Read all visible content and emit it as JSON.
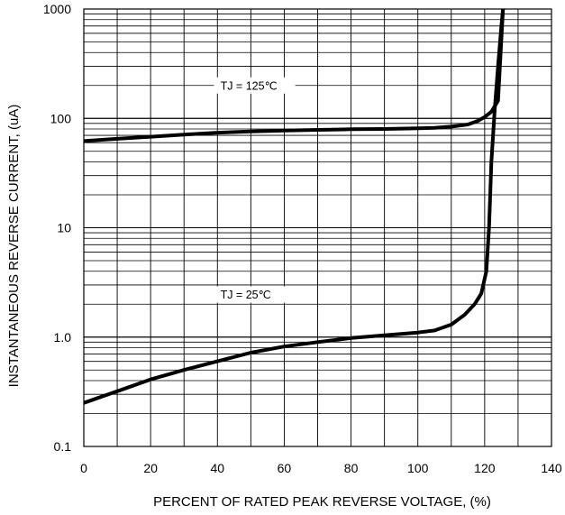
{
  "chart_data": {
    "type": "line",
    "title": "",
    "xlabel": "PERCENT OF RATED PEAK REVERSE VOLTAGE, (%)",
    "ylabel": "INSTANTANEOUS REVERSE CURRENT, (uA)",
    "xlim": [
      0,
      140
    ],
    "ylim": [
      0.1,
      1000
    ],
    "y_scale": "log",
    "grid": true,
    "x_ticks": [
      0,
      20,
      40,
      60,
      80,
      100,
      120,
      140
    ],
    "x_tick_labels": [
      "0",
      "20",
      "40",
      "60",
      "80",
      "100",
      "120",
      "140"
    ],
    "y_ticks": [
      0.1,
      1,
      10,
      100,
      1000
    ],
    "y_tick_labels": [
      "0.1",
      "1.0",
      "10",
      "100",
      "1000"
    ],
    "series": [
      {
        "label": "TJ = 125℃",
        "color": "#000000",
        "x": [
          0,
          10,
          20,
          30,
          40,
          50,
          60,
          70,
          80,
          90,
          100,
          105,
          110,
          115,
          118,
          120,
          122,
          124,
          125.5
        ],
        "y": [
          62,
          65,
          68,
          71,
          74,
          76,
          77.5,
          78.5,
          79.5,
          80,
          81,
          82,
          84,
          88,
          95,
          103,
          115,
          145,
          1000
        ]
      },
      {
        "label": "TJ = 25℃",
        "color": "#000000",
        "x": [
          0,
          10,
          20,
          30,
          40,
          50,
          60,
          70,
          80,
          90,
          100,
          105,
          110,
          114,
          117,
          119,
          120.5,
          121.3,
          122,
          123,
          124,
          125,
          125.5
        ],
        "y": [
          0.25,
          0.32,
          0.41,
          0.5,
          0.6,
          0.72,
          0.82,
          0.9,
          0.98,
          1.04,
          1.1,
          1.15,
          1.3,
          1.6,
          2.0,
          2.5,
          4,
          10,
          40,
          120,
          300,
          700,
          1000
        ]
      }
    ],
    "annotations": [
      {
        "text": "TJ = 125℃",
        "x": 39,
        "y": 200
      },
      {
        "text": "TJ = 25℃",
        "x": 39,
        "y": 2.45
      }
    ]
  }
}
